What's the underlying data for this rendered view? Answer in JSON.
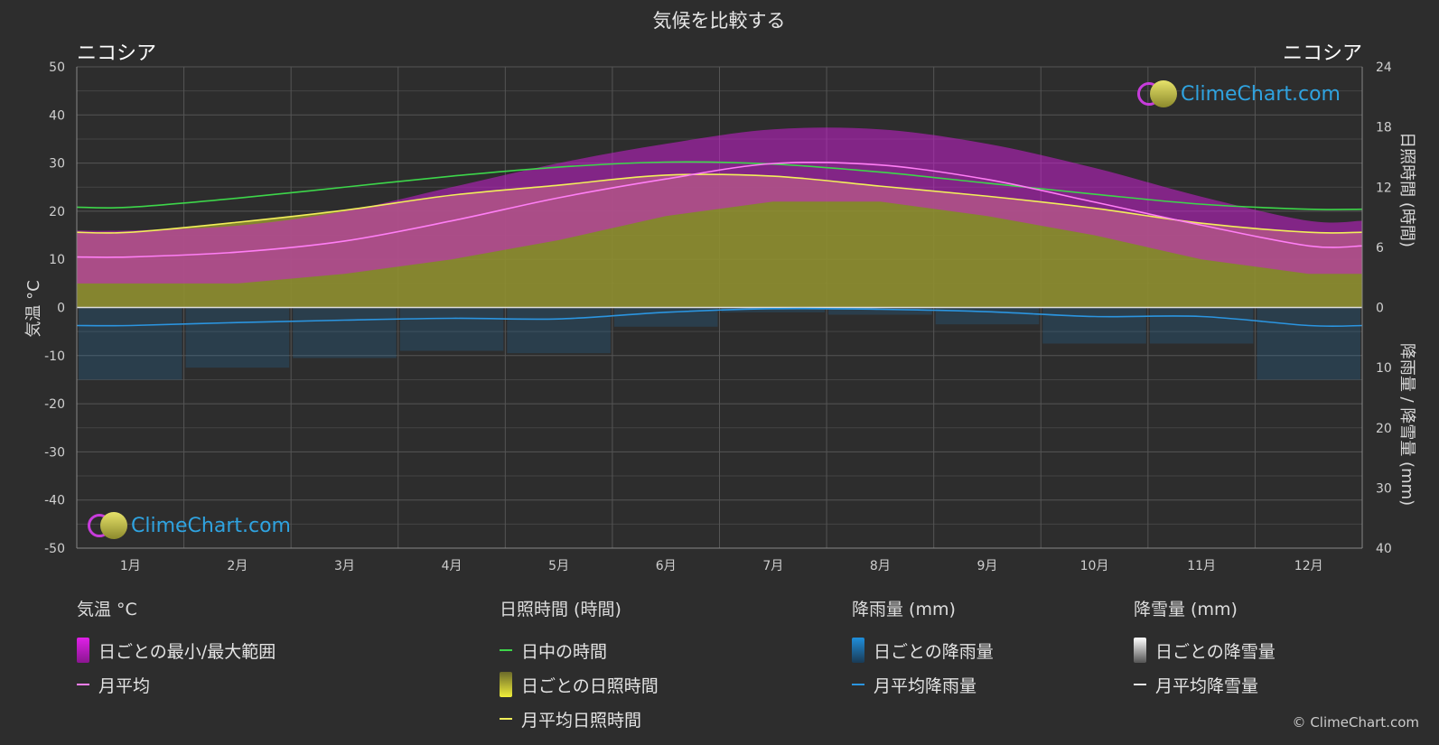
{
  "title": "気候を比較する",
  "location_left": "ニコシア",
  "location_right": "ニコシア",
  "watermark_text": "ClimeChart.com",
  "copyright": "© ClimeChart.com",
  "colors": {
    "background": "#2d2d2d",
    "temp_range": "#c91fcf",
    "temp_mean": "#ff7ef5",
    "daylight": "#3dd64a",
    "sunshine_fill": "#8f8f30",
    "sunshine_mean": "#f2ef5a",
    "rain": "#1f8fdc",
    "rain_mean": "#2b95e0",
    "snow": "#cccccc"
  },
  "legend": {
    "temp": {
      "header": "気温 °C",
      "range": "日ごとの最小/最大範囲",
      "mean": "月平均"
    },
    "sun": {
      "header": "日照時間 (時間)",
      "daylight": "日中の時間",
      "daily": "日ごとの日照時間",
      "mean": "月平均日照時間"
    },
    "rain": {
      "header": "降雨量 (mm)",
      "daily": "日ごとの降雨量",
      "mean": "月平均降雨量"
    },
    "snow": {
      "header": "降雪量 (mm)",
      "daily": "日ごとの降雪量",
      "mean": "月平均降雪量"
    }
  },
  "chart_data": {
    "type": "line",
    "categories": [
      "1月",
      "2月",
      "3月",
      "4月",
      "5月",
      "6月",
      "7月",
      "8月",
      "9月",
      "10月",
      "11月",
      "12月"
    ],
    "y_left": {
      "label": "気温 °C",
      "ylim": [
        -50,
        50
      ],
      "ticks": [
        50,
        40,
        30,
        20,
        10,
        0,
        -10,
        -20,
        -30,
        -40,
        -50
      ]
    },
    "y_right_top": {
      "label": "日照時間 (時間)",
      "ylim": [
        0,
        24
      ],
      "ticks": [
        24,
        18,
        12,
        6,
        0
      ]
    },
    "y_right_bottom": {
      "label": "降雨量 / 降雪量 (mm)",
      "ylim": [
        0,
        40
      ],
      "ticks": [
        0,
        10,
        20,
        30,
        40
      ]
    },
    "grid": true,
    "series": [
      {
        "name": "月平均",
        "axis": "temp",
        "values": [
          10.5,
          11.5,
          13.8,
          18.0,
          22.8,
          26.7,
          29.9,
          29.6,
          26.6,
          21.9,
          17.1,
          12.8
        ]
      },
      {
        "name": "日中の時間",
        "axis": "hours",
        "values": [
          10.0,
          10.9,
          12.0,
          13.1,
          14.0,
          14.5,
          14.3,
          13.5,
          12.4,
          11.3,
          10.3,
          9.8
        ]
      },
      {
        "name": "月平均日照時間",
        "axis": "hours",
        "values": [
          7.5,
          8.5,
          9.7,
          11.2,
          12.2,
          13.2,
          13.1,
          12.1,
          11.1,
          9.9,
          8.4,
          7.5
        ]
      },
      {
        "name": "月平均降雨量",
        "axis": "rain_mm",
        "values": [
          3.0,
          2.5,
          2.1,
          1.8,
          1.9,
          0.8,
          0.2,
          0.3,
          0.7,
          1.5,
          1.5,
          3.0
        ]
      },
      {
        "name": "月平均降雪量",
        "axis": "rain_mm",
        "values": [
          0,
          0,
          0,
          0,
          0,
          0,
          0,
          0,
          0,
          0,
          0,
          0
        ]
      }
    ],
    "temp_range": {
      "name": "日ごとの最小/最大範囲",
      "min": [
        5,
        5,
        7,
        10,
        14,
        19,
        22,
        22,
        19,
        15,
        10,
        7
      ],
      "max": [
        16,
        17,
        20,
        25,
        30,
        34,
        37,
        37,
        34,
        29,
        23,
        18
      ]
    }
  }
}
